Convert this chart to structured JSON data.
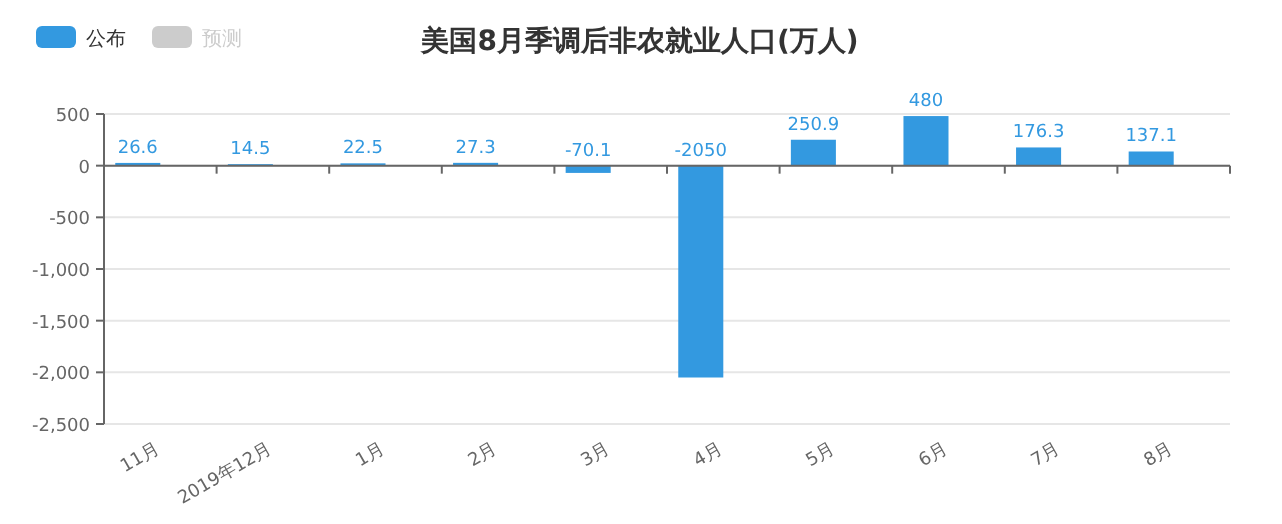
{
  "chart_data": {
    "type": "bar",
    "title": "美国8月季调后非农就业人口(万人)",
    "categories": [
      "11月",
      "2019年12月",
      "1月",
      "2月",
      "3月",
      "4月",
      "5月",
      "6月",
      "7月",
      "8月"
    ],
    "series": [
      {
        "name": "公布",
        "color": "#3399e0",
        "values": [
          26.6,
          14.5,
          22.5,
          27.3,
          -70.1,
          -2050,
          250.9,
          480,
          176.3,
          137.1
        ]
      },
      {
        "name": "预测",
        "color": "#cccccc",
        "values": [
          null,
          null,
          null,
          null,
          null,
          null,
          null,
          null,
          null,
          null
        ]
      }
    ],
    "ylim": [
      -2500,
      500
    ],
    "yticks": [
      500,
      0,
      -500,
      {
        "value": -1000,
        "label": "-1,000"
      },
      {
        "value": -1500,
        "label": "-1,500"
      },
      {
        "value": -2000,
        "label": "-2,000"
      },
      {
        "value": -2500,
        "label": "-2,500"
      }
    ],
    "grid": "y",
    "legend": "top left",
    "data_labels": true
  }
}
